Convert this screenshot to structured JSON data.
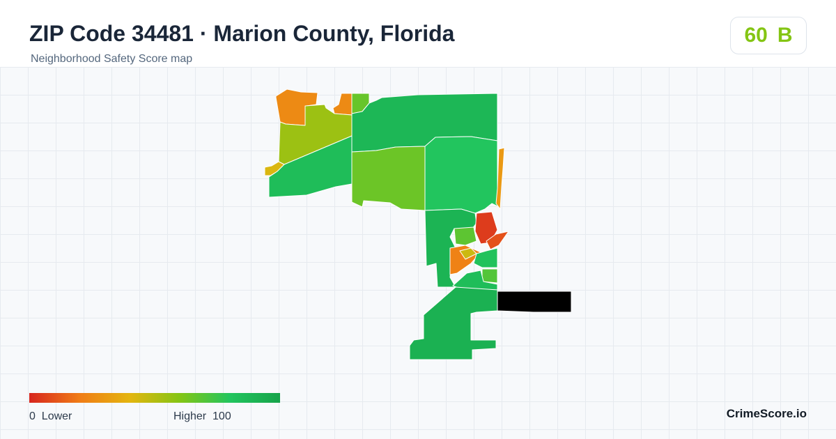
{
  "header": {
    "title": "ZIP Code 34481 · Marion County, Florida",
    "subtitle": "Neighborhood Safety Score map"
  },
  "score": {
    "value": "60",
    "grade": "B",
    "color": "#84c514"
  },
  "map": {
    "stroke_color": "#ffffff",
    "tracts": [
      {
        "name": "tract-nw-orange",
        "score": 25
      },
      {
        "name": "tract-nw-orange-2",
        "score": 25
      },
      {
        "name": "tract-nw-olive",
        "score": 55
      },
      {
        "name": "tract-nw-small",
        "score": 42
      },
      {
        "name": "tract-west-green",
        "score": 85
      },
      {
        "name": "tract-north-lime",
        "score": 66
      },
      {
        "name": "tract-north-green",
        "score": 88
      },
      {
        "name": "tract-center-lime",
        "score": 65
      },
      {
        "name": "tract-center-green",
        "score": 80
      },
      {
        "name": "tract-east-strip",
        "score": 30
      },
      {
        "name": "tract-south-green",
        "score": 90
      },
      {
        "name": "tract-cluster-red",
        "score": 5
      },
      {
        "name": "tract-cluster-red-2",
        "score": 10
      },
      {
        "name": "tract-cluster-orange",
        "score": 22
      },
      {
        "name": "tract-cluster-lime",
        "score": 68
      },
      {
        "name": "tract-cluster-yellow",
        "score": 45
      },
      {
        "name": "tract-cluster-green",
        "score": 82
      },
      {
        "name": "tract-cluster-lime-2",
        "score": 70
      },
      {
        "name": "tract-southeast-green",
        "score": 85
      },
      {
        "name": "tract-far-south-green",
        "score": 92
      }
    ]
  },
  "legend": {
    "low_label": "0  Lower",
    "high_label": "Higher  100",
    "colors": [
      "#d7261e",
      "#f07c16",
      "#e4b50f",
      "#84c514",
      "#22c55e",
      "#16a34a"
    ]
  },
  "brand": "CrimeScore.io"
}
